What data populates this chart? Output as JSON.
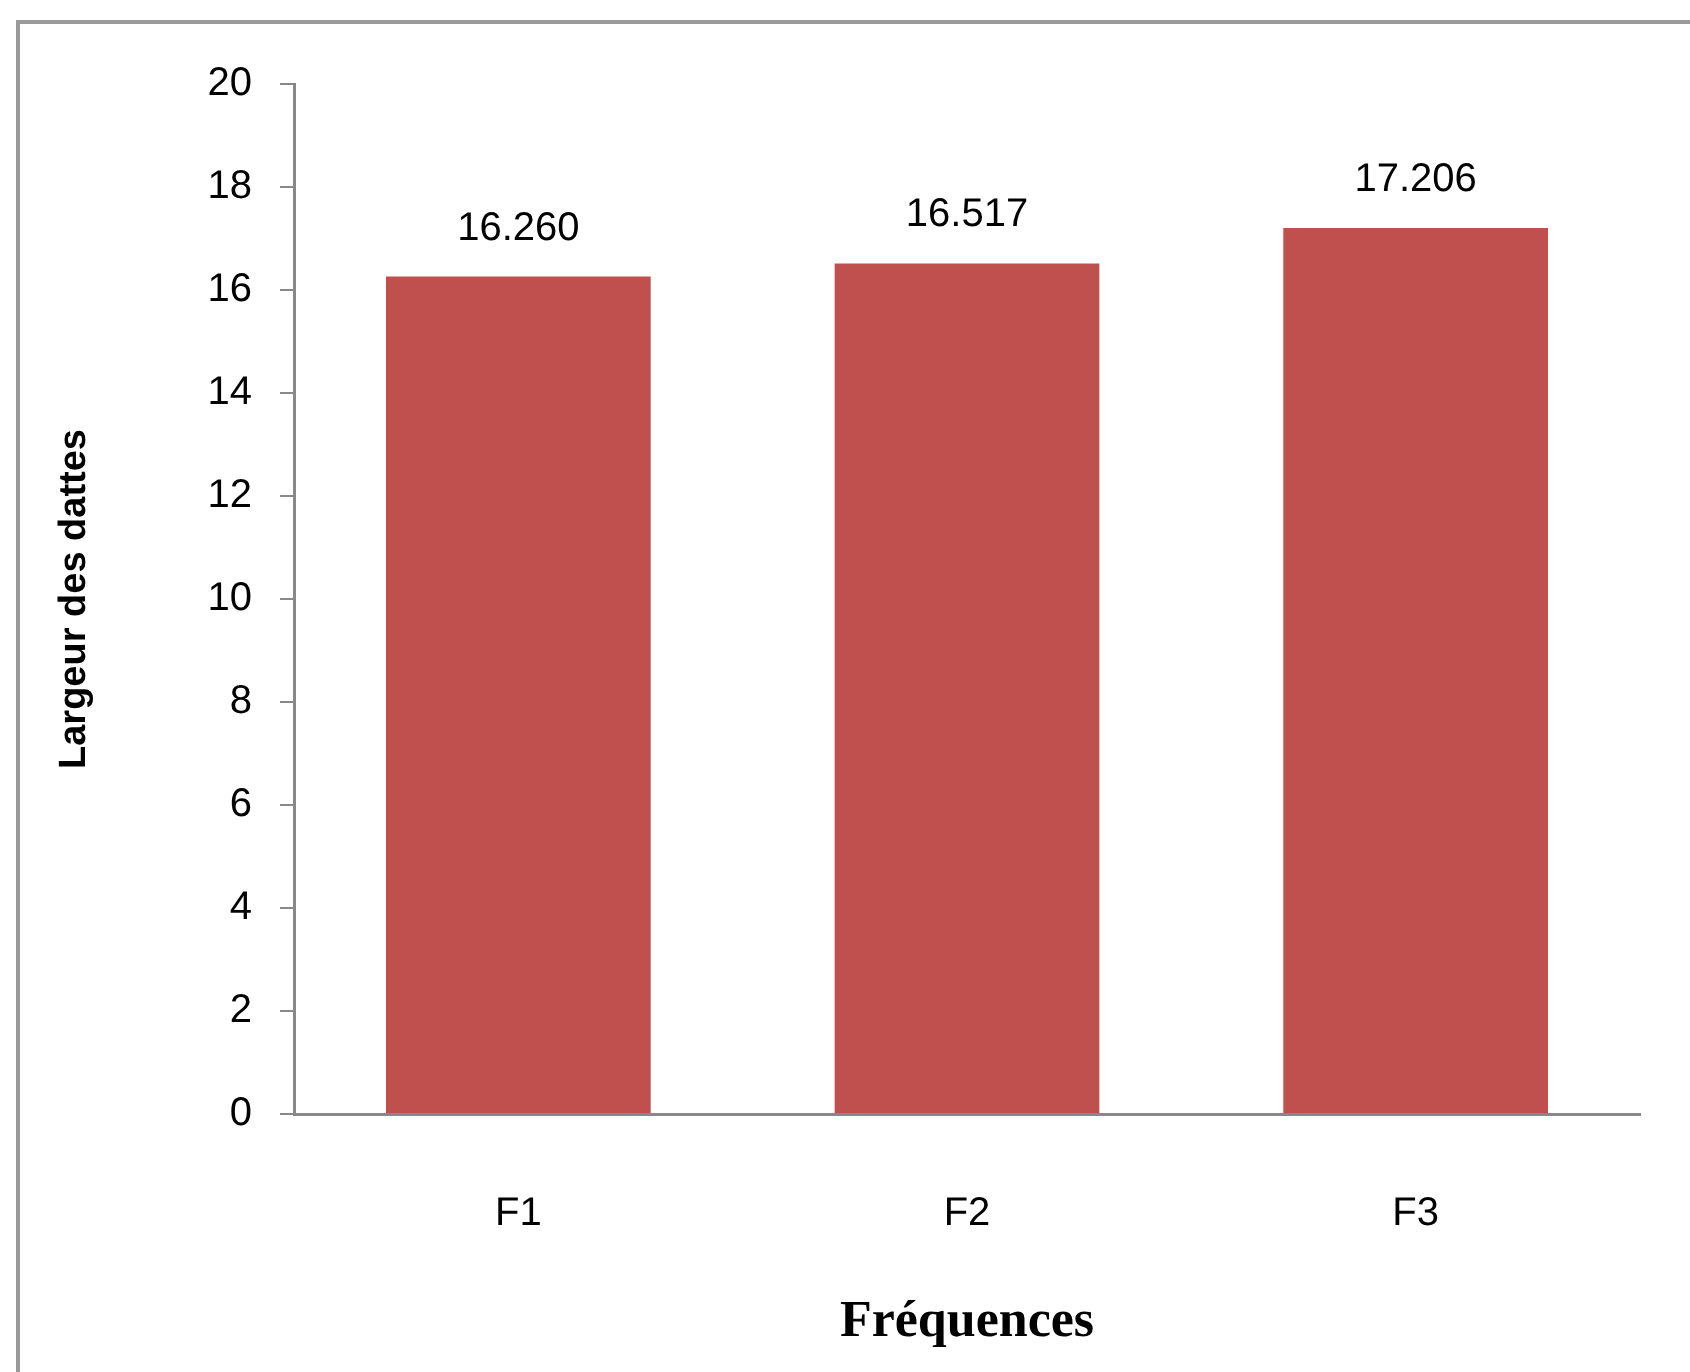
{
  "chart_data": {
    "type": "bar",
    "xlabel": "Fréquences",
    "ylabel": "Largeur des dattes",
    "categories": [
      "F1",
      "F2",
      "F3"
    ],
    "values": [
      16.26,
      16.517,
      17.206
    ],
    "value_labels": [
      "16.260",
      "16.517",
      "17.206"
    ],
    "color": "#c0504d",
    "ylim": [
      0,
      20
    ],
    "yticks": [
      0,
      2,
      4,
      6,
      8,
      10,
      12,
      14,
      16,
      18,
      20
    ],
    "grid": false,
    "legend": false
  }
}
